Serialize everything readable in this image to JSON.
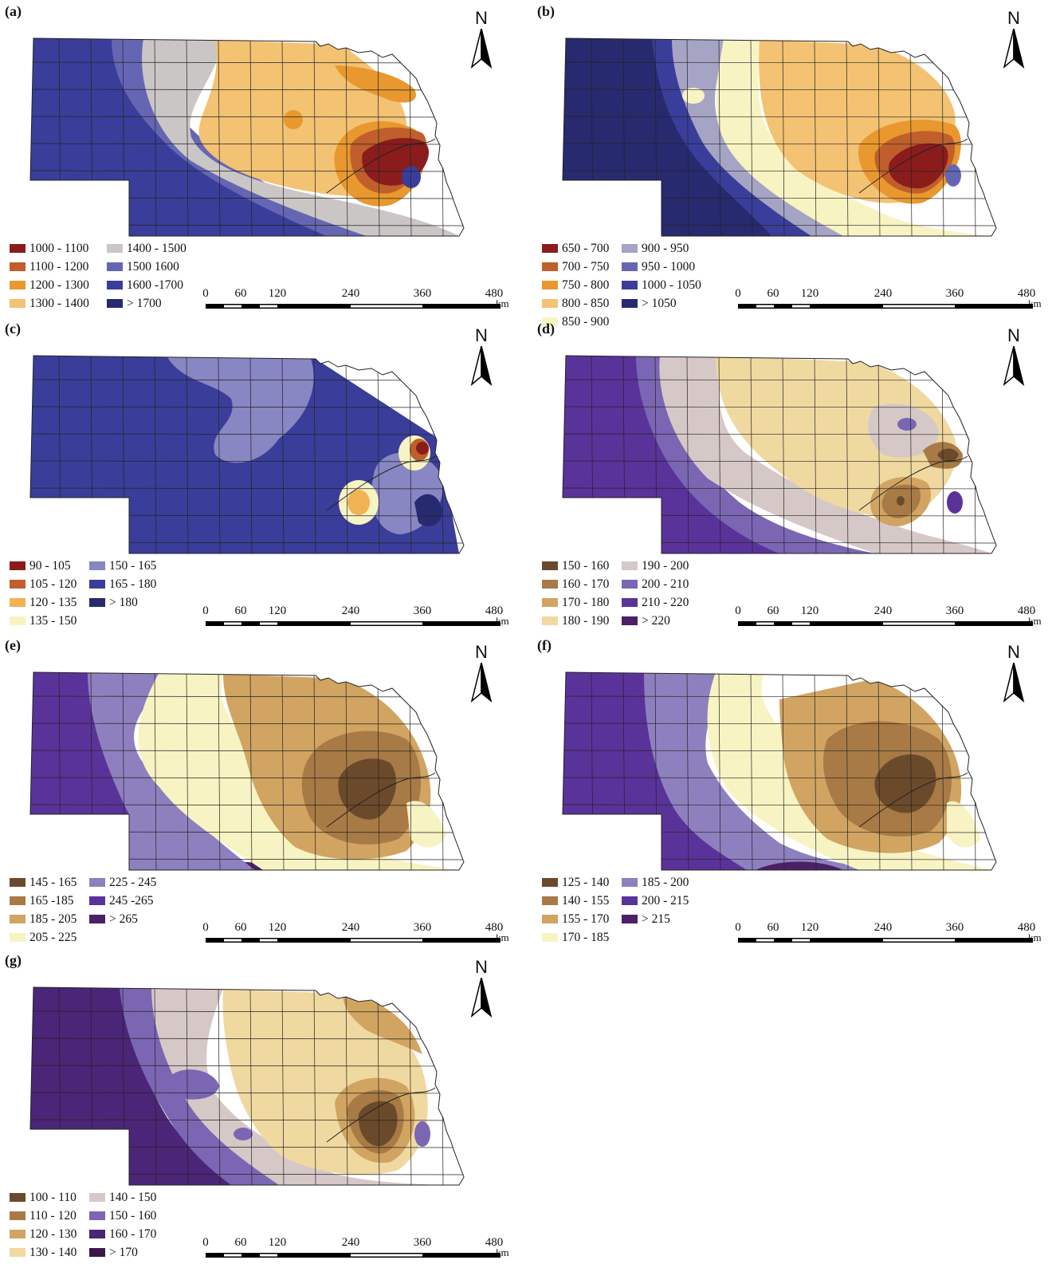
{
  "north_label": "N",
  "scale": {
    "ticks": [
      "0",
      "60",
      "120",
      "240",
      "360",
      "480"
    ],
    "unit": "km"
  },
  "colors": {
    "brown_dark": "#6b4a2b",
    "brown_mid": "#a87a45",
    "brown_light": "#d1a462",
    "tan": "#f0d9a0",
    "cream": "#f8f3c3",
    "gray": "#cbc6c6",
    "red_dark": "#8b1c1c",
    "orange_dark": "#c05f2b",
    "orange": "#e8982e",
    "tan_orange": "#f3c273",
    "blue_light": "#6566b3",
    "blue_mid": "#3a3e9a",
    "navy": "#272a6f",
    "purple_light": "#8e80bf",
    "purple_mid": "#6747a5",
    "purple_dark": "#4b2577",
    "purple_deepest": "#3d1748"
  },
  "panels": [
    {
      "label": "(a)",
      "legend_left": [
        {
          "text": "1000 - 1100",
          "color": "#8b1c1c"
        },
        {
          "text": "1100 - 1200",
          "color": "#c05f2b"
        },
        {
          "text": "1200 - 1300",
          "color": "#e8982e"
        },
        {
          "text": "1300 - 1400",
          "color": "#f3c273"
        }
      ],
      "legend_right": [
        {
          "text": "1400 - 1500",
          "color": "#cbc6c6"
        },
        {
          "text": "1500 1600",
          "color": "#6566b3"
        },
        {
          "text": "1600 -1700",
          "color": "#3a3e9a"
        },
        {
          "text": "> 1700",
          "color": "#272a6f"
        }
      ]
    },
    {
      "label": "(b)",
      "legend_left": [
        {
          "text": "650 - 700",
          "color": "#8b1c1c"
        },
        {
          "text": "700 - 750",
          "color": "#c05f2b"
        },
        {
          "text": "750 - 800",
          "color": "#e8982e"
        },
        {
          "text": "800 - 850",
          "color": "#f3c273"
        },
        {
          "text": "850 - 900",
          "color": "#f8f3c3"
        }
      ],
      "legend_right": [
        {
          "text": "900 - 950",
          "color": "#a6a4c4"
        },
        {
          "text": "950 - 1000",
          "color": "#6566b3"
        },
        {
          "text": "1000 - 1050",
          "color": "#3a3e9a"
        },
        {
          "text": "> 1050",
          "color": "#272a6f"
        }
      ]
    },
    {
      "label": "(c)",
      "legend_left": [
        {
          "text": "90 - 105",
          "color": "#8b1c1c"
        },
        {
          "text": "105 - 120",
          "color": "#c05f2b"
        },
        {
          "text": "120 - 135",
          "color": "#f1b255"
        },
        {
          "text": "135 - 150",
          "color": "#f8f3c3"
        }
      ],
      "legend_right": [
        {
          "text": "150 - 165",
          "color": "#8886c3"
        },
        {
          "text": "165 - 180",
          "color": "#3a3e9a"
        },
        {
          "text": "> 180",
          "color": "#272a6f"
        }
      ]
    },
    {
      "label": "(d)",
      "legend_left": [
        {
          "text": "150 - 160",
          "color": "#6b4a2b"
        },
        {
          "text": "160 - 170",
          "color": "#a87a45"
        },
        {
          "text": "170 - 180",
          "color": "#d1a462"
        },
        {
          "text": "180 - 190",
          "color": "#f0d9a0"
        }
      ],
      "legend_right": [
        {
          "text": "190 - 200",
          "color": "#d7c8c8"
        },
        {
          "text": "200 - 210",
          "color": "#7b66b4"
        },
        {
          "text": "210 - 220",
          "color": "#5a339a"
        },
        {
          "text": "> 220",
          "color": "#4b2066"
        }
      ]
    },
    {
      "label": "(e)",
      "legend_left": [
        {
          "text": "145 - 165",
          "color": "#6b4a2b"
        },
        {
          "text": "165 -185",
          "color": "#a87a45"
        },
        {
          "text": "185 - 205",
          "color": "#d1a462"
        },
        {
          "text": "205 - 225",
          "color": "#f8f3c3"
        }
      ],
      "legend_right": [
        {
          "text": "225 - 245",
          "color": "#8e80bf"
        },
        {
          "text": "245 -265",
          "color": "#5a339a"
        },
        {
          "text": "> 265",
          "color": "#4b2066"
        }
      ]
    },
    {
      "label": "(f)",
      "legend_left": [
        {
          "text": "125 - 140",
          "color": "#6b4a2b"
        },
        {
          "text": "140 - 155",
          "color": "#a87a45"
        },
        {
          "text": "155 - 170",
          "color": "#d1a462"
        },
        {
          "text": "170 - 185",
          "color": "#f8f3c3"
        }
      ],
      "legend_right": [
        {
          "text": "185 - 200",
          "color": "#8e80bf"
        },
        {
          "text": "200 - 215",
          "color": "#5a339a"
        },
        {
          "text": "> 215",
          "color": "#4b2066"
        }
      ]
    },
    {
      "label": "(g)",
      "legend_left": [
        {
          "text": "100 - 110",
          "color": "#6b4a2b"
        },
        {
          "text": "110 - 120",
          "color": "#a87a45"
        },
        {
          "text": "120 - 130",
          "color": "#d1a462"
        },
        {
          "text": "130 - 140",
          "color": "#f0d9a0"
        }
      ],
      "legend_right": [
        {
          "text": "140 - 150",
          "color": "#d7c8c8"
        },
        {
          "text": "150 - 160",
          "color": "#7b66b4"
        },
        {
          "text": "160 - 170",
          "color": "#4b2577"
        },
        {
          "text": "> 170",
          "color": "#3d1748"
        }
      ]
    }
  ]
}
